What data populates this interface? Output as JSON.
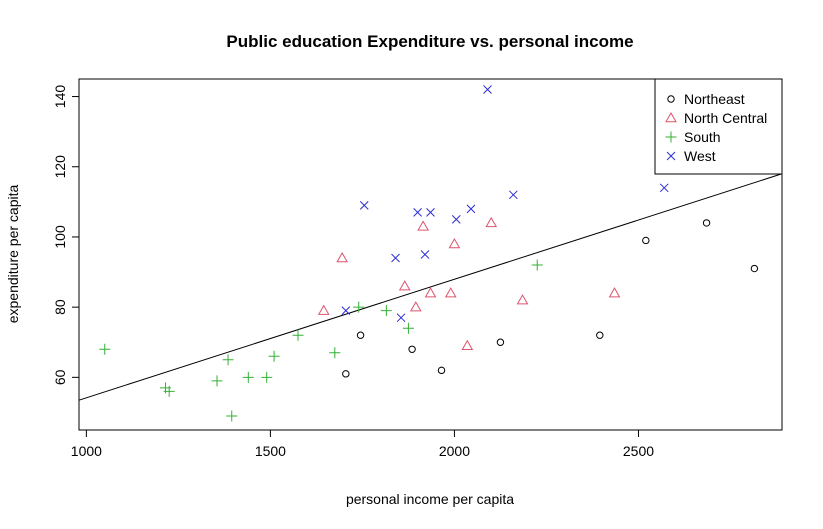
{
  "chart_data": {
    "type": "scatter",
    "title": "Public education Expenditure vs. personal income",
    "xlabel": "personal income per capita",
    "ylabel": "expenditure per capita",
    "xlim": [
      980,
      2890
    ],
    "ylim": [
      45,
      145
    ],
    "xticks": [
      1000,
      1500,
      2000,
      2500
    ],
    "yticks": [
      60,
      80,
      100,
      120,
      140
    ],
    "grid": false,
    "legend_position": "top-right",
    "series": [
      {
        "name": "Northeast",
        "marker": "circle",
        "color": "#000000",
        "points": [
          [
            1705,
            61
          ],
          [
            1745,
            72
          ],
          [
            1885,
            68
          ],
          [
            1965,
            62
          ],
          [
            2125,
            70
          ],
          [
            2395,
            72
          ],
          [
            2520,
            99
          ],
          [
            2685,
            104
          ],
          [
            2815,
            91
          ]
        ]
      },
      {
        "name": "North Central",
        "marker": "triangle",
        "color": "#df536b",
        "points": [
          [
            1645,
            79
          ],
          [
            1695,
            94
          ],
          [
            1865,
            86
          ],
          [
            1895,
            80
          ],
          [
            1915,
            103
          ],
          [
            1935,
            84
          ],
          [
            1990,
            84
          ],
          [
            2000,
            98
          ],
          [
            2035,
            69
          ],
          [
            2100,
            104
          ],
          [
            2185,
            82
          ],
          [
            2435,
            84
          ]
        ]
      },
      {
        "name": "South",
        "marker": "plus",
        "color": "#33b033",
        "points": [
          [
            1050,
            68
          ],
          [
            1215,
            57
          ],
          [
            1225,
            56
          ],
          [
            1355,
            59
          ],
          [
            1385,
            65
          ],
          [
            1395,
            49
          ],
          [
            1440,
            60
          ],
          [
            1490,
            60
          ],
          [
            1510,
            66
          ],
          [
            1575,
            72
          ],
          [
            1675,
            67
          ],
          [
            1740,
            80
          ],
          [
            1815,
            79
          ],
          [
            1875,
            74
          ],
          [
            2225,
            92
          ]
        ]
      },
      {
        "name": "West",
        "marker": "x",
        "color": "#2d2dd6",
        "points": [
          [
            1705,
            79
          ],
          [
            1755,
            109
          ],
          [
            1840,
            94
          ],
          [
            1855,
            77
          ],
          [
            1900,
            107
          ],
          [
            1920,
            95
          ],
          [
            1935,
            107
          ],
          [
            2005,
            105
          ],
          [
            2045,
            108
          ],
          [
            2090,
            142
          ],
          [
            2160,
            112
          ],
          [
            2570,
            114
          ]
        ]
      }
    ],
    "regression_line": {
      "from": [
        980,
        53.5
      ],
      "to": [
        2890,
        118
      ]
    }
  }
}
